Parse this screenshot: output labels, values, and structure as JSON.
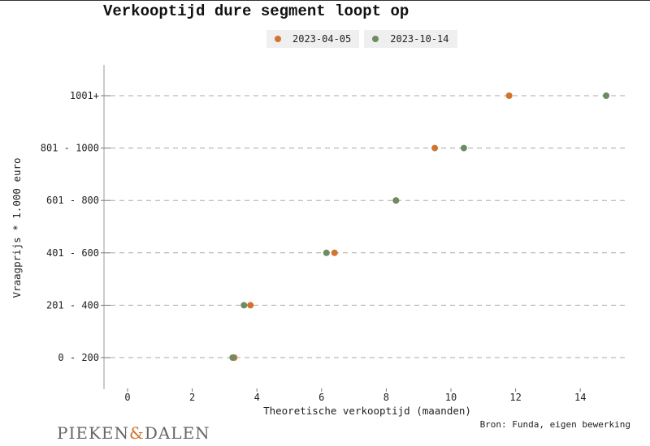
{
  "chart_data": {
    "type": "scatter",
    "title": "Verkooptijd dure segment loopt op",
    "xlabel": "Theoretische verkooptijd (maanden)",
    "ylabel": "Vraagprijs * 1.000 euro",
    "categories": [
      "0 - 200",
      "201 - 400",
      "401 - 600",
      "601 - 800",
      "801 - 1000",
      "1001+"
    ],
    "xlim": [
      -0.7,
      15.4
    ],
    "xticks": [
      0,
      2,
      4,
      6,
      8,
      10,
      12,
      14
    ],
    "grid": "horizontal dashed",
    "legend_position": "top-center",
    "series": [
      {
        "name": "2023-04-05",
        "color": "#d2742f",
        "values": [
          3.3,
          3.8,
          6.4,
          8.3,
          9.5,
          11.8
        ]
      },
      {
        "name": "2023-10-14",
        "color": "#6e8b63",
        "values": [
          3.25,
          3.6,
          6.15,
          8.3,
          10.4,
          14.8
        ]
      }
    ]
  },
  "source": "Bron: Funda, eigen bewerking",
  "logo": {
    "left": "PIEKEN",
    "amp": "&",
    "right": "DALEN"
  }
}
